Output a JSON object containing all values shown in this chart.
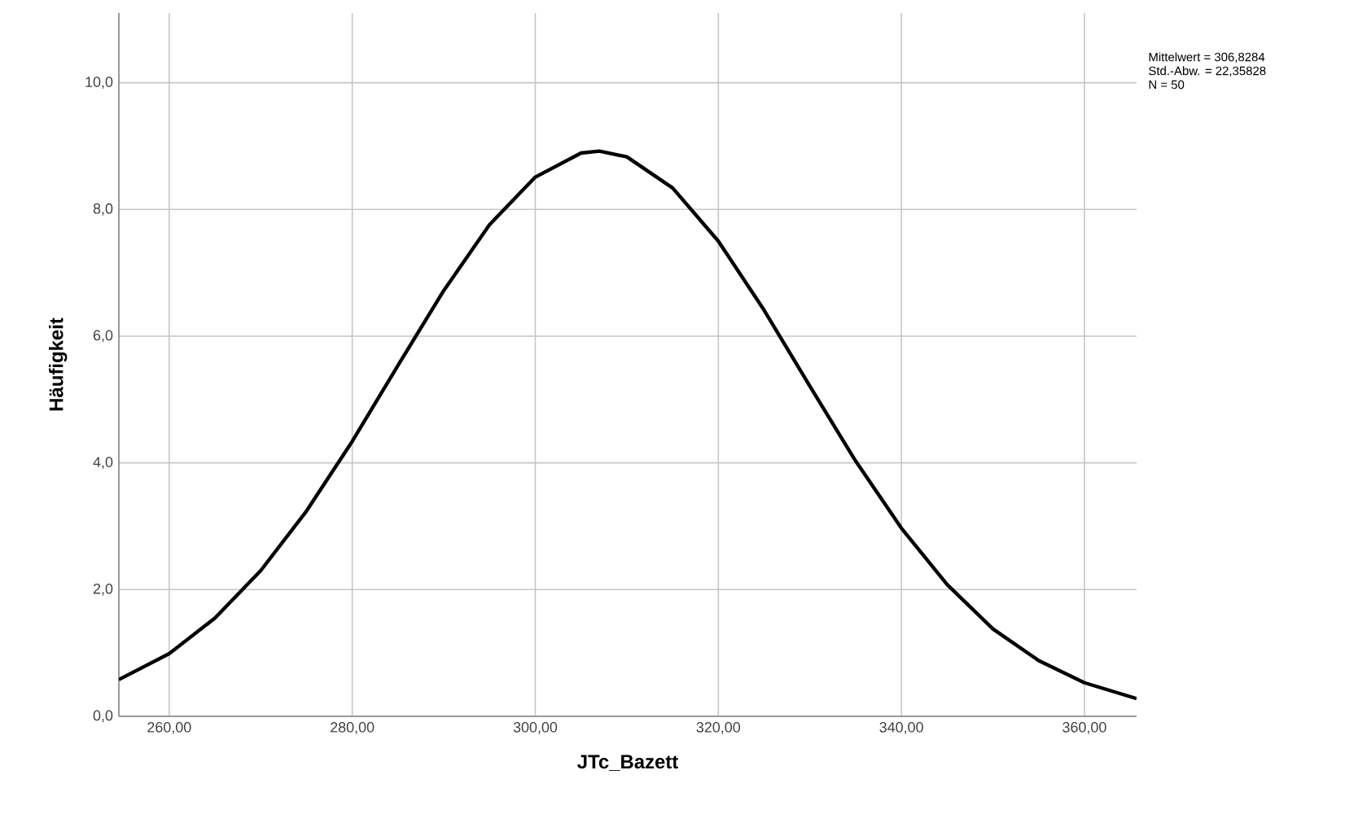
{
  "chart_data": {
    "type": "line",
    "xlabel": "JTc_Bazett",
    "ylabel": "Häufigkeit",
    "annotations": [
      "Mittelwert = 306,8284",
      "Std.-Abw. = 22,35828",
      "N = 50"
    ],
    "xlim": [
      254.5,
      365.7
    ],
    "ylim": [
      0,
      11.1
    ],
    "xticks": [
      {
        "value": 260,
        "label": "260,00"
      },
      {
        "value": 280,
        "label": "280,00"
      },
      {
        "value": 300,
        "label": "300,00"
      },
      {
        "value": 320,
        "label": "320,00"
      },
      {
        "value": 340,
        "label": "340,00"
      },
      {
        "value": 360,
        "label": "360,00"
      }
    ],
    "yticks": [
      {
        "value": 0,
        "label": "0,0"
      },
      {
        "value": 2,
        "label": "2,0"
      },
      {
        "value": 4,
        "label": "4,0"
      },
      {
        "value": 6,
        "label": "6,0"
      },
      {
        "value": 8,
        "label": "8,0"
      },
      {
        "value": 10,
        "label": "10,0"
      }
    ],
    "grid": true,
    "series": [
      {
        "color": "#000000",
        "x": [
          254.5,
          260,
          265,
          270,
          275,
          280,
          285,
          290,
          295,
          300,
          305,
          307,
          310,
          315,
          320,
          325,
          330,
          335,
          340,
          345,
          350,
          355,
          360,
          365.7
        ],
        "values": [
          0.58,
          0.99,
          1.55,
          2.3,
          3.24,
          4.34,
          5.54,
          6.72,
          7.76,
          8.51,
          8.89,
          8.92,
          8.83,
          8.34,
          7.5,
          6.41,
          5.21,
          4.03,
          2.97,
          2.08,
          1.38,
          0.88,
          0.53,
          0.28
        ]
      }
    ]
  }
}
